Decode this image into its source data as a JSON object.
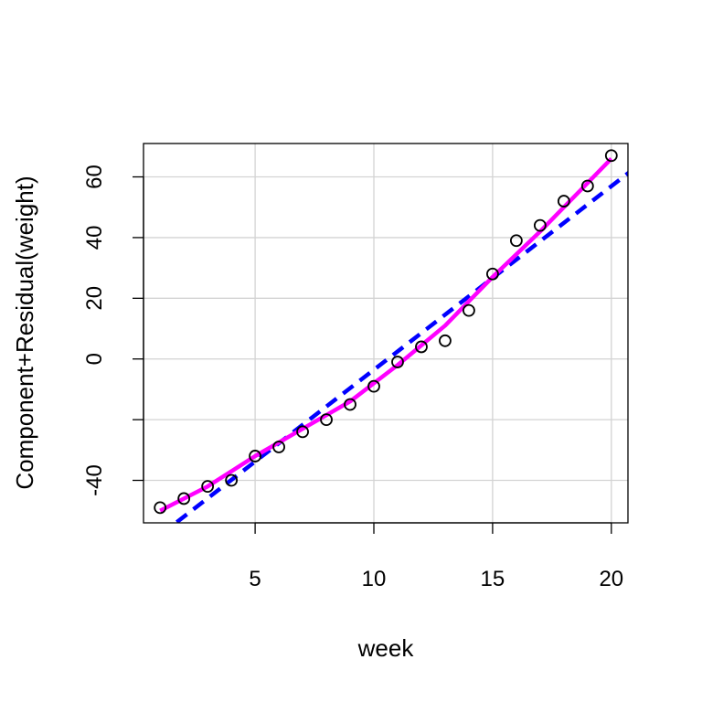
{
  "chart_data": {
    "type": "scatter",
    "title": "",
    "xlabel": "week",
    "ylabel": "Component+Residual(weight)",
    "xlim": [
      0.3,
      20.7
    ],
    "ylim": [
      -54,
      71
    ],
    "x_ticks": [
      5,
      10,
      15,
      20
    ],
    "y_ticks": [
      -40,
      -20,
      0,
      20,
      40,
      60
    ],
    "y_tick_labels": [
      "-40",
      "",
      "0",
      "20",
      "40",
      "60"
    ],
    "grid": true,
    "colors": {
      "points": "#000000",
      "linear_fit": "#0000ff",
      "smooth_fit": "#ff00ff",
      "grid": "#d3d3d3"
    },
    "points": {
      "x": [
        1,
        2,
        3,
        4,
        5,
        6,
        7,
        8,
        9,
        10,
        11,
        12,
        13,
        14,
        15,
        16,
        17,
        18,
        19,
        20
      ],
      "y": [
        -49,
        -46,
        -42,
        -40,
        -32,
        -29,
        -24,
        -20,
        -15,
        -9,
        -1,
        4,
        6,
        16,
        28,
        39,
        44,
        52,
        57,
        67
      ]
    },
    "series": [
      {
        "style": "dashed",
        "x": [
          1,
          21
        ],
        "y": [
          -58,
          63
        ]
      },
      {
        "style": "solid",
        "x": [
          1,
          3,
          5,
          7,
          9,
          11,
          13,
          15,
          17,
          18,
          20
        ],
        "y": [
          -50,
          -42,
          -32,
          -23,
          -14,
          -2,
          11,
          27,
          42,
          50,
          66
        ]
      }
    ]
  }
}
